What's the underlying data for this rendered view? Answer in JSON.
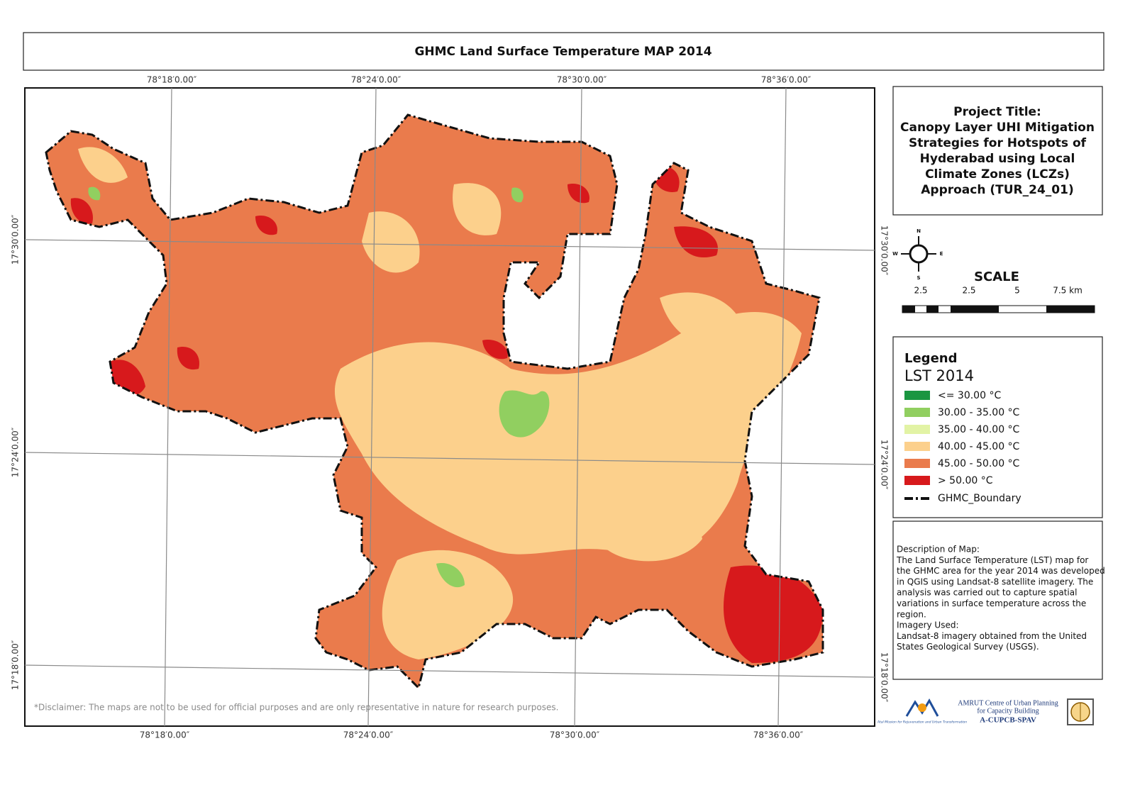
{
  "title": "GHMC Land Surface Temperature MAP 2014",
  "grid": {
    "lon_labels": [
      "78°18′0.00″",
      "78°24′0.00″",
      "78°30′0.00″",
      "78°36′0.00″"
    ],
    "lat_labels": [
      "17°30′0.00″",
      "17°24′0.00″",
      "17°18′0.00″"
    ]
  },
  "disclaimer": "*Disclaimer: The maps are not to be used for official purposes and are only representative in nature for research purposes.",
  "project": {
    "lines": [
      "Project Title:",
      "Canopy Layer UHI Mitigation",
      "Strategies for Hotspots of",
      "Hyderabad using Local",
      "Climate Zones (LCZs)",
      "Approach (TUR_24_01)"
    ]
  },
  "compass": {
    "north": "N",
    "south": "S",
    "west": "W",
    "east": "E"
  },
  "scale": {
    "title": "SCALE",
    "labels": [
      "2.5",
      "2.5",
      "5",
      "7.5 km"
    ]
  },
  "legend": {
    "heading": "Legend",
    "layer": "LST 2014",
    "items": [
      {
        "label": "<= 30.00 °C",
        "color": "#1a9641"
      },
      {
        "label": "30.00 - 35.00 °C",
        "color": "#91cf60"
      },
      {
        "label": "35.00 - 40.00 °C",
        "color": "#e2f3a5"
      },
      {
        "label": "40.00 - 45.00 °C",
        "color": "#fcd08c"
      },
      {
        "label": "45.00 - 50.00 °C",
        "color": "#ea7b4c"
      },
      {
        "label": "> 50.00 °C",
        "color": "#d7191c"
      }
    ],
    "boundary": "GHMC_Boundary"
  },
  "description": {
    "lines": [
      "Description of Map:",
      "The Land Surface Temperature (LST) map for",
      "the GHMC area for the year 2014 was developed",
      "in QGIS using Landsat-8 satellite imagery. The",
      "analysis was carried out to capture spatial",
      "variations in surface temperature across the",
      "region.",
      "Imagery Used:",
      "Landsat-8 imagery obtained from the United",
      "States Geological Survey (USGS)."
    ]
  },
  "logos": {
    "amrut_small": "Atal Mission for Rejuvenation and Urban Transformation",
    "centre_line1": "AMRUT Centre of Urban Planning",
    "centre_line2": "for Capacity Building",
    "centre_code": "A-CUPCB-SPAV"
  }
}
